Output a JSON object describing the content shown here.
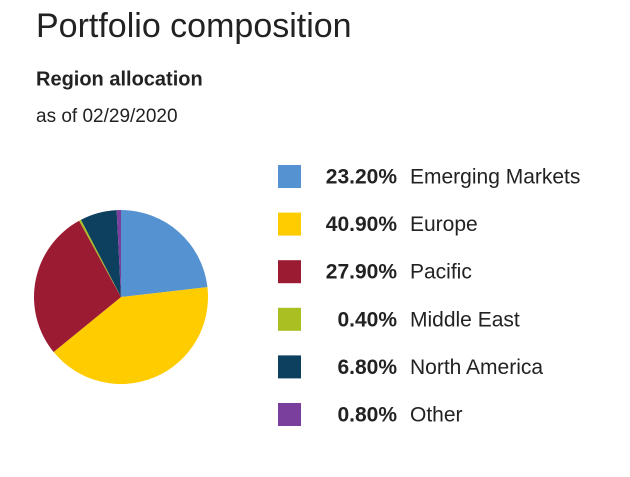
{
  "chart_data": {
    "type": "pie",
    "title": "Portfolio composition",
    "subtitle": "Region allocation",
    "note": "as of 02/29/2020",
    "categories": [
      "Emerging Markets",
      "Europe",
      "Pacific",
      "Middle East",
      "North America",
      "Other"
    ],
    "values": [
      23.2,
      40.9,
      27.9,
      0.4,
      6.8,
      0.8
    ],
    "value_labels": [
      "23.20%",
      "40.90%",
      "27.90%",
      "0.40%",
      "6.80%",
      "0.80%"
    ],
    "colors": [
      "#5592d2",
      "#ffcc00",
      "#9b1b33",
      "#a9bf22",
      "#0d3f5f",
      "#7a3e9d"
    ],
    "legend": "right"
  }
}
